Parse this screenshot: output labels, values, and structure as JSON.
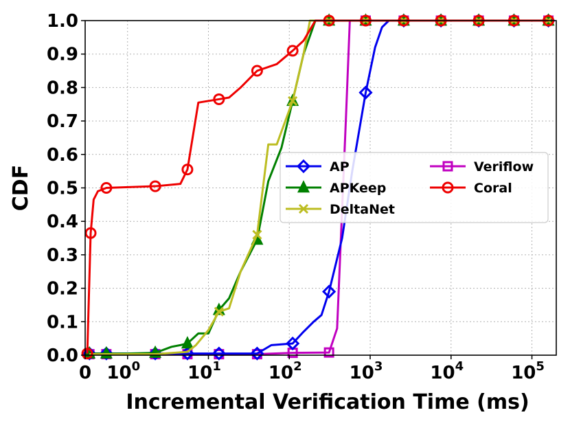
{
  "chart_data": {
    "type": "line",
    "xlabel": "Incremental Verification Time (ms)",
    "ylabel": "CDF",
    "xscale": "symlog",
    "xlim": [
      0,
      200000
    ],
    "ylim": [
      0,
      1
    ],
    "grid": true,
    "legend_position": "center-right",
    "x_ticks": [
      {
        "value": 0,
        "label": "0"
      },
      {
        "value": 1,
        "label": "10",
        "exp": "0"
      },
      {
        "value": 10,
        "label": "10",
        "exp": "1"
      },
      {
        "value": 100,
        "label": "10",
        "exp": "2"
      },
      {
        "value": 1000,
        "label": "10",
        "exp": "3"
      },
      {
        "value": 10000,
        "label": "10",
        "exp": "4"
      },
      {
        "value": 100000,
        "label": "10",
        "exp": "5"
      }
    ],
    "y_ticks": [
      {
        "value": 0.0,
        "label": "0.0"
      },
      {
        "value": 0.1,
        "label": "0.1"
      },
      {
        "value": 0.2,
        "label": "0.2"
      },
      {
        "value": 0.3,
        "label": "0.3"
      },
      {
        "value": 0.4,
        "label": "0.4"
      },
      {
        "value": 0.5,
        "label": "0.5"
      },
      {
        "value": 0.6,
        "label": "0.6"
      },
      {
        "value": 0.7,
        "label": "0.7"
      },
      {
        "value": 0.8,
        "label": "0.8"
      },
      {
        "value": 0.9,
        "label": "0.9"
      },
      {
        "value": 1.0,
        "label": "1.0"
      }
    ],
    "series": [
      {
        "name": "AP",
        "color": "#0000ee",
        "marker": "diamond",
        "points": [
          [
            0.1,
            0.005
          ],
          [
            0.5,
            0.005
          ],
          [
            1,
            0.005
          ],
          [
            2.2,
            0.005
          ],
          [
            5.5,
            0.005
          ],
          [
            13.5,
            0.005
          ],
          [
            40,
            0.005
          ],
          [
            60,
            0.03
          ],
          [
            110,
            0.035
          ],
          [
            150,
            0.07
          ],
          [
            200,
            0.1
          ],
          [
            250,
            0.12
          ],
          [
            310,
            0.19
          ],
          [
            450,
            0.35
          ],
          [
            600,
            0.55
          ],
          [
            880,
            0.785
          ],
          [
            1150,
            0.92
          ],
          [
            1400,
            0.98
          ],
          [
            1700,
            1.0
          ],
          [
            2600,
            1.0
          ],
          [
            7500,
            1.0
          ],
          [
            22000,
            1.0
          ],
          [
            60000,
            1.0
          ],
          [
            160000,
            1.0
          ]
        ],
        "markers": [
          [
            0.1,
            0.005
          ],
          [
            0.5,
            0.005
          ],
          [
            2.2,
            0.005
          ],
          [
            5.5,
            0.005
          ],
          [
            13.5,
            0.005
          ],
          [
            40,
            0.005
          ],
          [
            110,
            0.035
          ],
          [
            310,
            0.19
          ],
          [
            880,
            0.785
          ],
          [
            2600,
            1.0
          ],
          [
            7500,
            1.0
          ],
          [
            22000,
            1.0
          ],
          [
            60000,
            1.0
          ],
          [
            160000,
            1.0
          ]
        ]
      },
      {
        "name": "APKeep",
        "color": "#008000",
        "marker": "triangle",
        "points": [
          [
            0.1,
            0.005
          ],
          [
            0.5,
            0.005
          ],
          [
            1,
            0.005
          ],
          [
            2.2,
            0.007
          ],
          [
            3.5,
            0.025
          ],
          [
            4.5,
            0.03
          ],
          [
            5.5,
            0.035
          ],
          [
            7.5,
            0.065
          ],
          [
            10,
            0.065
          ],
          [
            13.5,
            0.135
          ],
          [
            18,
            0.17
          ],
          [
            25,
            0.25
          ],
          [
            40,
            0.345
          ],
          [
            55,
            0.52
          ],
          [
            80,
            0.62
          ],
          [
            110,
            0.76
          ],
          [
            150,
            0.9
          ],
          [
            210,
            1.0
          ],
          [
            310,
            1.0
          ],
          [
            880,
            1.0
          ],
          [
            2600,
            1.0
          ],
          [
            7500,
            1.0
          ],
          [
            22000,
            1.0
          ],
          [
            60000,
            1.0
          ],
          [
            160000,
            1.0
          ]
        ],
        "markers": [
          [
            0.1,
            0.005
          ],
          [
            0.5,
            0.005
          ],
          [
            2.2,
            0.007
          ],
          [
            5.5,
            0.035
          ],
          [
            13.5,
            0.135
          ],
          [
            40,
            0.345
          ],
          [
            110,
            0.76
          ],
          [
            310,
            1.0
          ],
          [
            880,
            1.0
          ],
          [
            2600,
            1.0
          ],
          [
            7500,
            1.0
          ],
          [
            22000,
            1.0
          ],
          [
            60000,
            1.0
          ],
          [
            160000,
            1.0
          ]
        ]
      },
      {
        "name": "DeltaNet",
        "color": "#bcbd22",
        "marker": "x",
        "points": [
          [
            0.1,
            0.003
          ],
          [
            0.5,
            0.003
          ],
          [
            1,
            0.003
          ],
          [
            2.2,
            0.003
          ],
          [
            5.5,
            0.01
          ],
          [
            7,
            0.03
          ],
          [
            10,
            0.075
          ],
          [
            13.5,
            0.13
          ],
          [
            18,
            0.14
          ],
          [
            25,
            0.25
          ],
          [
            40,
            0.36
          ],
          [
            55,
            0.63
          ],
          [
            70,
            0.63
          ],
          [
            110,
            0.76
          ],
          [
            150,
            0.9
          ],
          [
            180,
            1.0
          ],
          [
            310,
            1.0
          ],
          [
            880,
            1.0
          ],
          [
            2600,
            1.0
          ],
          [
            7500,
            1.0
          ],
          [
            22000,
            1.0
          ],
          [
            60000,
            1.0
          ],
          [
            160000,
            1.0
          ]
        ],
        "markers": [
          [
            13.5,
            0.13
          ],
          [
            40,
            0.36
          ],
          [
            110,
            0.76
          ],
          [
            310,
            1.0
          ],
          [
            880,
            1.0
          ],
          [
            2600,
            1.0
          ],
          [
            7500,
            1.0
          ],
          [
            22000,
            1.0
          ],
          [
            60000,
            1.0
          ],
          [
            160000,
            1.0
          ]
        ]
      },
      {
        "name": "Veriflow",
        "color": "#c000c0",
        "marker": "square",
        "points": [
          [
            0.1,
            0.003
          ],
          [
            0.5,
            0.003
          ],
          [
            1,
            0.003
          ],
          [
            2.2,
            0.003
          ],
          [
            5.5,
            0.003
          ],
          [
            13.5,
            0.003
          ],
          [
            40,
            0.003
          ],
          [
            110,
            0.007
          ],
          [
            310,
            0.008
          ],
          [
            390,
            0.08
          ],
          [
            500,
            0.7
          ],
          [
            560,
            1.0
          ],
          [
            880,
            1.0
          ],
          [
            2600,
            1.0
          ],
          [
            7500,
            1.0
          ],
          [
            22000,
            1.0
          ],
          [
            60000,
            1.0
          ],
          [
            160000,
            1.0
          ]
        ],
        "markers": [
          [
            0.1,
            0.003
          ],
          [
            0.5,
            0.003
          ],
          [
            2.2,
            0.003
          ],
          [
            5.5,
            0.003
          ],
          [
            13.5,
            0.003
          ],
          [
            40,
            0.003
          ],
          [
            110,
            0.007
          ],
          [
            310,
            0.008
          ],
          [
            880,
            1.0
          ],
          [
            2600,
            1.0
          ],
          [
            7500,
            1.0
          ],
          [
            22000,
            1.0
          ],
          [
            60000,
            1.0
          ],
          [
            160000,
            1.0
          ]
        ]
      },
      {
        "name": "Coral",
        "color": "#ee0000",
        "marker": "circle",
        "points": [
          [
            0.05,
            0.005
          ],
          [
            0.13,
            0.365
          ],
          [
            0.2,
            0.465
          ],
          [
            0.3,
            0.49
          ],
          [
            0.5,
            0.5
          ],
          [
            2.2,
            0.505
          ],
          [
            4.5,
            0.512
          ],
          [
            5.5,
            0.555
          ],
          [
            7.5,
            0.755
          ],
          [
            13.5,
            0.765
          ],
          [
            18,
            0.77
          ],
          [
            25,
            0.8
          ],
          [
            40,
            0.85
          ],
          [
            70,
            0.87
          ],
          [
            110,
            0.91
          ],
          [
            150,
            0.94
          ],
          [
            210,
            1.0
          ],
          [
            310,
            1.0
          ],
          [
            880,
            1.0
          ],
          [
            2600,
            1.0
          ],
          [
            7500,
            1.0
          ],
          [
            22000,
            1.0
          ],
          [
            60000,
            1.0
          ],
          [
            160000,
            1.0
          ]
        ],
        "markers": [
          [
            0.05,
            0.005
          ],
          [
            0.13,
            0.365
          ],
          [
            0.5,
            0.5
          ],
          [
            2.2,
            0.505
          ],
          [
            5.5,
            0.555
          ],
          [
            13.5,
            0.765
          ],
          [
            40,
            0.85
          ],
          [
            110,
            0.91
          ],
          [
            310,
            1.0
          ],
          [
            880,
            1.0
          ],
          [
            2600,
            1.0
          ],
          [
            7500,
            1.0
          ],
          [
            22000,
            1.0
          ],
          [
            60000,
            1.0
          ],
          [
            160000,
            1.0
          ]
        ]
      }
    ]
  }
}
